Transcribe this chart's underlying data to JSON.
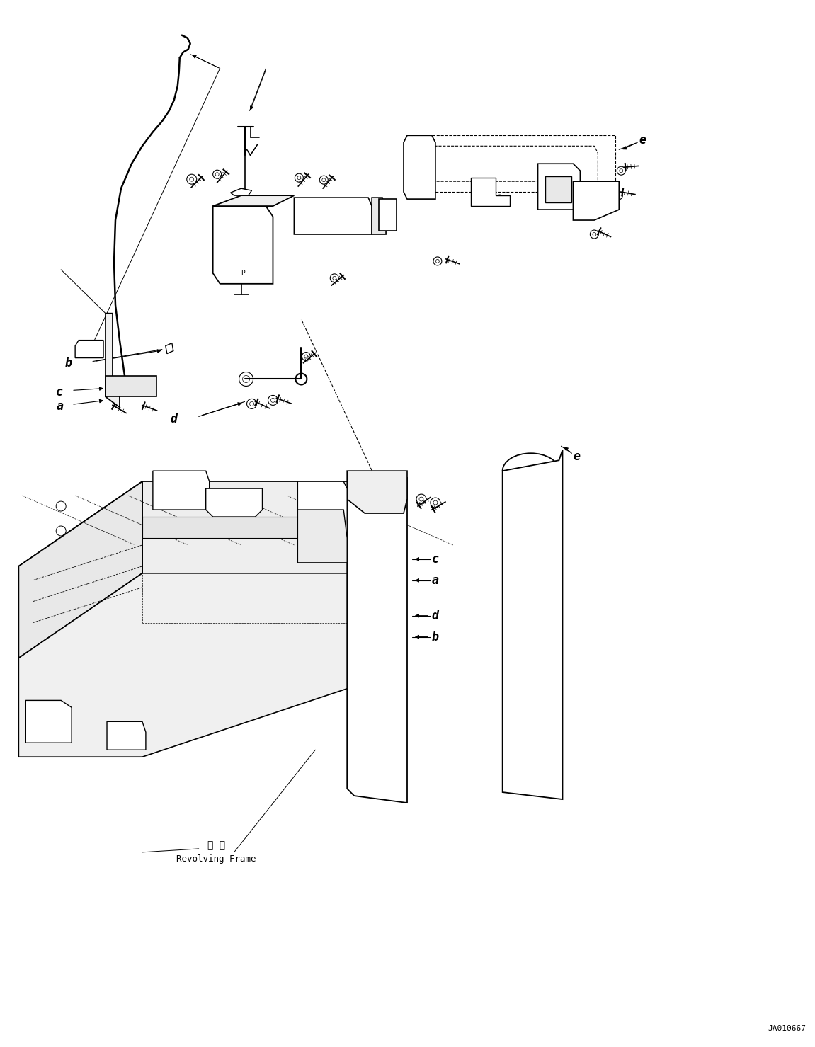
{
  "figure_width": 11.51,
  "figure_height": 14.79,
  "dpi": 100,
  "bg": "#ffffff",
  "lc": "#000000",
  "part_id": "JA010667",
  "label_fs": 12,
  "small_fs": 8,
  "zh_label": "转 台",
  "en_label": "Revolving Frame"
}
